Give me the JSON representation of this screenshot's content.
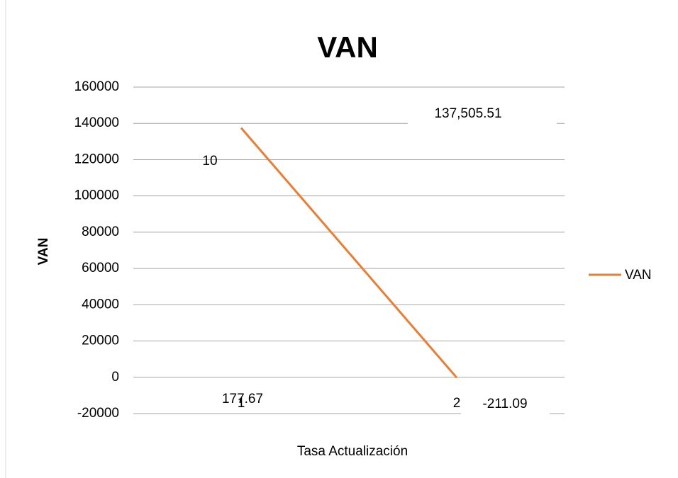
{
  "chart_data": {
    "type": "line",
    "title": "VAN",
    "y_label": "VAN",
    "x_label": "Tasa Actualización",
    "categories": [
      "1",
      "2"
    ],
    "series": [
      {
        "name": "VAN",
        "color": "#ed7d31",
        "values": [
          137505.51,
          -211.09
        ],
        "value_labels": [
          "137,505.51",
          "-211.09"
        ]
      }
    ],
    "annotations": [
      "10",
      "177.67"
    ],
    "ylim": [
      -20000,
      160000
    ],
    "yticks": [
      -20000,
      0,
      20000,
      40000,
      60000,
      80000,
      100000,
      120000,
      140000,
      160000
    ],
    "grid": true,
    "legend": "right"
  }
}
